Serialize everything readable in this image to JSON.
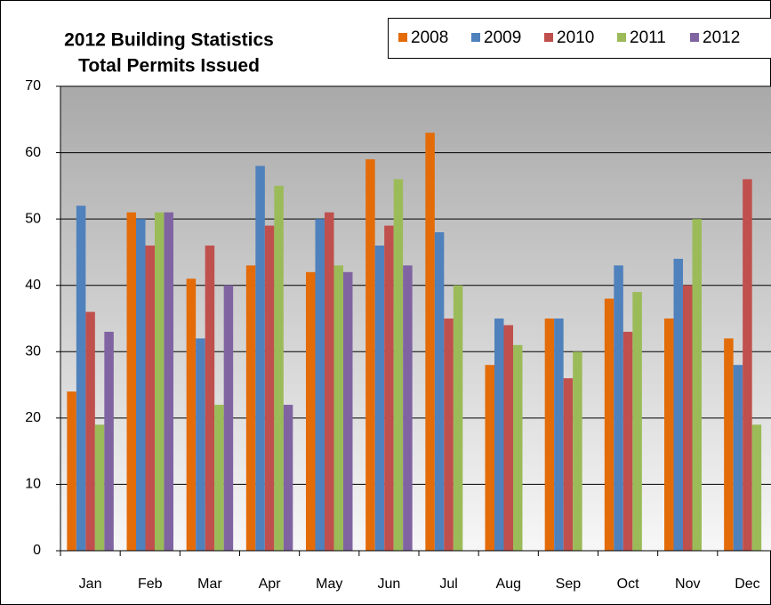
{
  "chart_data": {
    "type": "bar",
    "title": [
      "2012 Building Statistics",
      "Total Permits Issued"
    ],
    "categories": [
      "Jan",
      "Feb",
      "Mar",
      "Apr",
      "May",
      "Jun",
      "Jul",
      "Aug",
      "Sep",
      "Oct",
      "Nov",
      "Dec"
    ],
    "series": [
      {
        "name": "2008",
        "color": "#e36c09",
        "values": [
          24,
          51,
          41,
          43,
          42,
          59,
          63,
          28,
          35,
          38,
          35,
          32
        ]
      },
      {
        "name": "2009",
        "color": "#4f81bd",
        "values": [
          52,
          50,
          32,
          58,
          50,
          46,
          48,
          35,
          35,
          43,
          44,
          28
        ]
      },
      {
        "name": "2010",
        "color": "#c0504d",
        "values": [
          36,
          46,
          46,
          49,
          51,
          49,
          35,
          34,
          26,
          33,
          40,
          56
        ]
      },
      {
        "name": "2011",
        "color": "#9bbb59",
        "values": [
          19,
          51,
          22,
          55,
          43,
          56,
          40,
          31,
          30,
          39,
          50,
          19
        ]
      },
      {
        "name": "2012",
        "color": "#8064a2",
        "values": [
          33,
          51,
          40,
          22,
          42,
          43,
          null,
          null,
          null,
          null,
          null,
          null
        ]
      }
    ],
    "ylim": [
      0,
      70
    ],
    "yticks": [
      0,
      10,
      20,
      30,
      40,
      50,
      60,
      70
    ],
    "grid": true,
    "legend": "top-right"
  }
}
